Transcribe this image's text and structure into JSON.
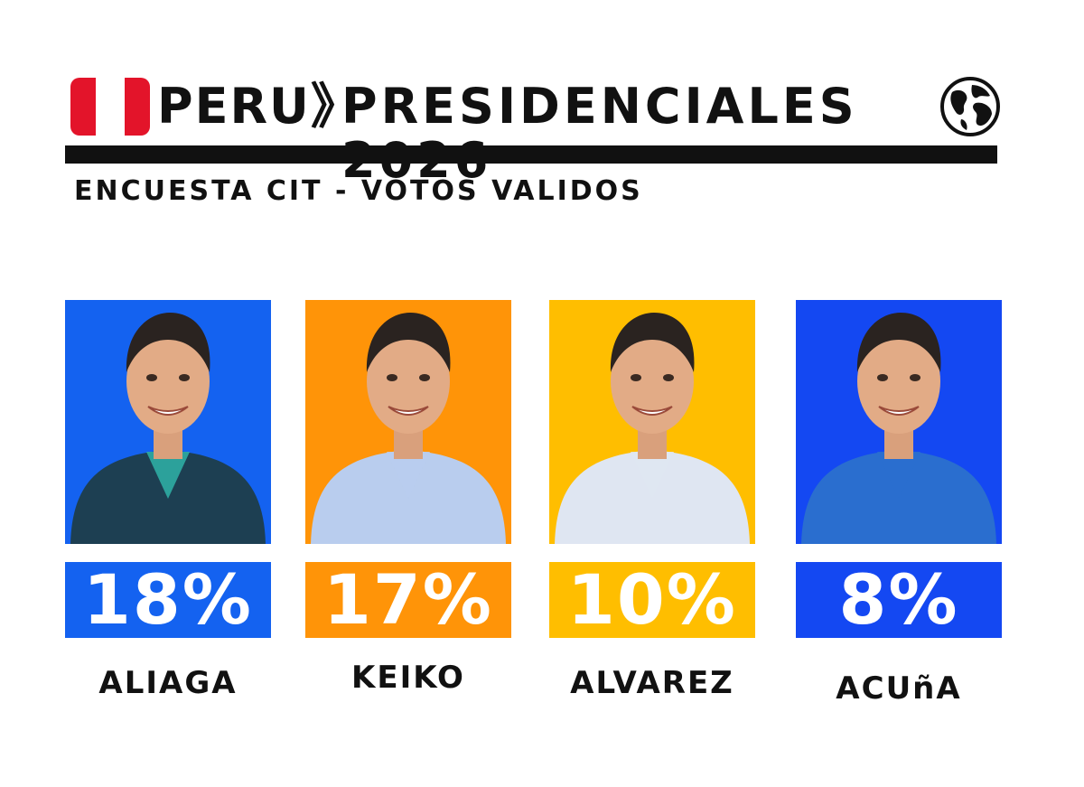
{
  "header": {
    "country": "PERU》",
    "title": "PRESIDENCIALES 2026",
    "subtitle": "ENCUESTA CIT - VOTOS VALIDOS",
    "flag_colors": [
      "#e3142a",
      "#ffffff",
      "#e3142a"
    ],
    "icon": "globe-icon"
  },
  "chart_data": {
    "type": "bar",
    "categories": [
      "ALIAGA",
      "KEIKO",
      "ALVAREZ",
      "ACUñA"
    ],
    "values": [
      18,
      17,
      10,
      8
    ],
    "value_labels": [
      "18%",
      "17%",
      "10%",
      "8%"
    ],
    "unit": "%",
    "colors": [
      "#1462f0",
      "#ff9408",
      "#ffbe00",
      "#1448f2"
    ],
    "title": "PRESIDENCIALES 2026",
    "subtitle": "ENCUESTA CIT - VOTOS VALIDOS"
  },
  "candidates": [
    {
      "name": "ALIAGA",
      "pct": "18%",
      "bg": "#1462f0",
      "suit": "#1d3f52",
      "shirt": "#2fb3a8",
      "photo": "candidate-photo"
    },
    {
      "name": "KEIKO",
      "pct": "17%",
      "bg": "#ff9408",
      "suit": "#b9cdee",
      "shirt": "#b9cdee",
      "photo": "candidate-photo"
    },
    {
      "name": "ALVAREZ",
      "pct": "10%",
      "bg": "#ffbe00",
      "suit": "#dfe6f2",
      "shirt": "#dfe6f2",
      "photo": "candidate-photo"
    },
    {
      "name": "ACUñA",
      "pct": "8%",
      "bg": "#1448f2",
      "suit": "#2a6ecf",
      "shirt": "#2a6ecf",
      "photo": "candidate-photo"
    }
  ]
}
